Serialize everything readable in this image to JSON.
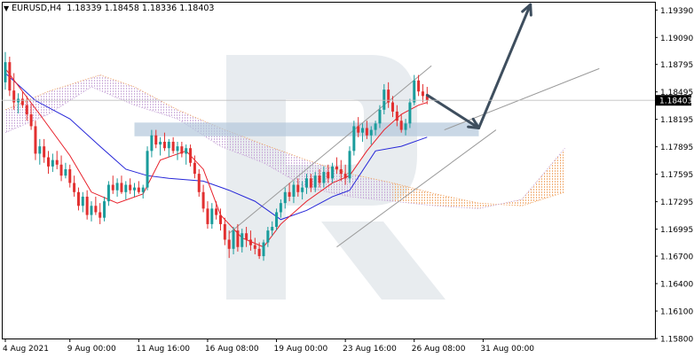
{
  "header": {
    "symbol": "EURUSD,H4",
    "ohlc": "1.18339 1.18458 1.18336 1.18403"
  },
  "colors": {
    "up_candle": "#1a9c9c",
    "down_candle": "#e23030",
    "tenkan": "#e8202a",
    "kijun": "#2626d8",
    "cloud_top": "#c8a8d8",
    "cloud_bottom": "#f0a86a",
    "channel": "#9a9a9a",
    "arrow": "#3e4e5e",
    "level_band": "#b4c8dc",
    "watermark": "#e6eaee"
  },
  "chart_data": {
    "type": "candlestick",
    "title": "EURUSD,H4",
    "ylim": [
      1.158,
      1.1948
    ],
    "y_ticks": [
      "1.19390",
      "1.19090",
      "1.18795",
      "1.18495",
      "1.18195",
      "1.17895",
      "1.17595",
      "1.17295",
      "1.16995",
      "1.16700",
      "1.16400",
      "1.16100",
      "1.15800"
    ],
    "y_tick_values": [
      1.1939,
      1.1909,
      1.18795,
      1.18495,
      1.18195,
      1.17895,
      1.17595,
      1.17295,
      1.16995,
      1.167,
      1.164,
      1.161,
      1.158
    ],
    "x_ticks": [
      "4 Aug 2021",
      "9 Aug 00:00",
      "11 Aug 16:00",
      "16 Aug 08:00",
      "19 Aug 00:00",
      "23 Aug 16:00",
      "26 Aug 08:00",
      "31 Aug 00:00"
    ],
    "x_tick_index": [
      0,
      15,
      31,
      47,
      63,
      79,
      95,
      111
    ],
    "current_price": "1.18403",
    "current_price_value": 1.18403,
    "candles": [
      [
        1.186,
        1.1893,
        1.1852,
        1.1882
      ],
      [
        1.1882,
        1.1888,
        1.1845,
        1.1851
      ],
      [
        1.1851,
        1.187,
        1.183,
        1.1838
      ],
      [
        1.1838,
        1.1848,
        1.1826,
        1.1842
      ],
      [
        1.1842,
        1.185,
        1.1832,
        1.1835
      ],
      [
        1.1835,
        1.1845,
        1.1818,
        1.1825
      ],
      [
        1.1825,
        1.1836,
        1.1808,
        1.1812
      ],
      [
        1.1812,
        1.1818,
        1.1775,
        1.1782
      ],
      [
        1.1782,
        1.1798,
        1.177,
        1.179
      ],
      [
        1.179,
        1.1798,
        1.1772,
        1.1778
      ],
      [
        1.1778,
        1.1785,
        1.176,
        1.1768
      ],
      [
        1.1768,
        1.1782,
        1.1762,
        1.1775
      ],
      [
        1.1775,
        1.1785,
        1.1765,
        1.177
      ],
      [
        1.177,
        1.178,
        1.1752,
        1.1758
      ],
      [
        1.1758,
        1.1772,
        1.1755,
        1.1765
      ],
      [
        1.1765,
        1.177,
        1.1745,
        1.175
      ],
      [
        1.175,
        1.1758,
        1.1735,
        1.174
      ],
      [
        1.174,
        1.1745,
        1.172,
        1.1725
      ],
      [
        1.1725,
        1.174,
        1.1718,
        1.1735
      ],
      [
        1.1735,
        1.1742,
        1.171,
        1.1715
      ],
      [
        1.1715,
        1.173,
        1.1708,
        1.1725
      ],
      [
        1.1725,
        1.1735,
        1.1715,
        1.1718
      ],
      [
        1.1718,
        1.1728,
        1.1705,
        1.1712
      ],
      [
        1.1712,
        1.1735,
        1.1708,
        1.173
      ],
      [
        1.173,
        1.1752,
        1.1725,
        1.1748
      ],
      [
        1.1748,
        1.1758,
        1.1738,
        1.1742
      ],
      [
        1.1742,
        1.1755,
        1.1735,
        1.175
      ],
      [
        1.175,
        1.1758,
        1.1738,
        1.174
      ],
      [
        1.174,
        1.1752,
        1.1732,
        1.1748
      ],
      [
        1.1748,
        1.1755,
        1.1738,
        1.1742
      ],
      [
        1.1742,
        1.175,
        1.1735,
        1.1745
      ],
      [
        1.1745,
        1.1752,
        1.1738,
        1.174
      ],
      [
        1.174,
        1.1748,
        1.1733,
        1.1745
      ],
      [
        1.1745,
        1.179,
        1.1742,
        1.1785
      ],
      [
        1.1785,
        1.1808,
        1.1778,
        1.1802
      ],
      [
        1.1802,
        1.1808,
        1.1788,
        1.1792
      ],
      [
        1.1792,
        1.18,
        1.178,
        1.1795
      ],
      [
        1.1795,
        1.1805,
        1.1785,
        1.1788
      ],
      [
        1.1788,
        1.1798,
        1.1778,
        1.1795
      ],
      [
        1.1795,
        1.18,
        1.1782,
        1.1785
      ],
      [
        1.1785,
        1.1795,
        1.1775,
        1.179
      ],
      [
        1.179,
        1.1795,
        1.1778,
        1.1782
      ],
      [
        1.1782,
        1.1792,
        1.177,
        1.1788
      ],
      [
        1.1788,
        1.1792,
        1.1768,
        1.1772
      ],
      [
        1.1772,
        1.178,
        1.1755,
        1.176
      ],
      [
        1.176,
        1.1765,
        1.1735,
        1.174
      ],
      [
        1.174,
        1.1748,
        1.1718,
        1.1722
      ],
      [
        1.1722,
        1.173,
        1.17,
        1.1705
      ],
      [
        1.1705,
        1.1728,
        1.17,
        1.1722
      ],
      [
        1.1722,
        1.173,
        1.171,
        1.1715
      ],
      [
        1.1715,
        1.1722,
        1.1698,
        1.1705
      ],
      [
        1.1705,
        1.1712,
        1.1682,
        1.1688
      ],
      [
        1.1688,
        1.1698,
        1.1668,
        1.1678
      ],
      [
        1.1678,
        1.1702,
        1.1672,
        1.1698
      ],
      [
        1.1698,
        1.1705,
        1.1675,
        1.168
      ],
      [
        1.168,
        1.17,
        1.1674,
        1.1695
      ],
      [
        1.1695,
        1.1702,
        1.168,
        1.1688
      ],
      [
        1.1688,
        1.1698,
        1.1676,
        1.1682
      ],
      [
        1.1682,
        1.169,
        1.1672,
        1.1678
      ],
      [
        1.1678,
        1.1685,
        1.1667,
        1.167
      ],
      [
        1.167,
        1.1688,
        1.1665,
        1.1685
      ],
      [
        1.1685,
        1.1702,
        1.168,
        1.1698
      ],
      [
        1.1698,
        1.1708,
        1.1692,
        1.1702
      ],
      [
        1.1702,
        1.1722,
        1.1698,
        1.1718
      ],
      [
        1.1718,
        1.1732,
        1.1712,
        1.1728
      ],
      [
        1.1728,
        1.1745,
        1.1722,
        1.174
      ],
      [
        1.174,
        1.175,
        1.173,
        1.1735
      ],
      [
        1.1735,
        1.1752,
        1.1728,
        1.1748
      ],
      [
        1.1748,
        1.1755,
        1.1735,
        1.174
      ],
      [
        1.174,
        1.1752,
        1.1732,
        1.1745
      ],
      [
        1.1745,
        1.176,
        1.1738,
        1.1755
      ],
      [
        1.1755,
        1.176,
        1.174,
        1.1745
      ],
      [
        1.1745,
        1.1762,
        1.174,
        1.1758
      ],
      [
        1.1758,
        1.1765,
        1.1745,
        1.175
      ],
      [
        1.175,
        1.1768,
        1.1745,
        1.1762
      ],
      [
        1.1762,
        1.177,
        1.175,
        1.1755
      ],
      [
        1.1755,
        1.1772,
        1.175,
        1.1768
      ],
      [
        1.1768,
        1.1778,
        1.176,
        1.1765
      ],
      [
        1.1765,
        1.1775,
        1.1752,
        1.176
      ],
      [
        1.176,
        1.177,
        1.1748,
        1.1755
      ],
      [
        1.1755,
        1.179,
        1.175,
        1.1785
      ],
      [
        1.1785,
        1.1818,
        1.178,
        1.1812
      ],
      [
        1.1812,
        1.1822,
        1.18,
        1.1805
      ],
      [
        1.1805,
        1.1815,
        1.1795,
        1.181
      ],
      [
        1.181,
        1.1818,
        1.1798,
        1.1802
      ],
      [
        1.1802,
        1.1812,
        1.1792,
        1.1808
      ],
      [
        1.1808,
        1.1818,
        1.1802,
        1.1815
      ],
      [
        1.1815,
        1.1835,
        1.181,
        1.183
      ],
      [
        1.183,
        1.1858,
        1.1825,
        1.1852
      ],
      [
        1.1852,
        1.186,
        1.1832,
        1.1838
      ],
      [
        1.1838,
        1.1845,
        1.1822,
        1.1828
      ],
      [
        1.1828,
        1.1835,
        1.1812,
        1.1818
      ],
      [
        1.1818,
        1.1825,
        1.1805,
        1.1808
      ],
      [
        1.1808,
        1.182,
        1.1802,
        1.1815
      ],
      [
        1.1815,
        1.1842,
        1.181,
        1.1838
      ],
      [
        1.1838,
        1.1868,
        1.1835,
        1.1862
      ],
      [
        1.1862,
        1.1868,
        1.1845,
        1.185
      ],
      [
        1.185,
        1.1858,
        1.1838,
        1.1845
      ],
      [
        1.1845,
        1.1855,
        1.1836,
        1.184
      ]
    ],
    "indicators": {
      "tenkan": [
        [
          0,
          1.1875
        ],
        [
          8,
          1.1825
        ],
        [
          15,
          1.178
        ],
        [
          20,
          1.174
        ],
        [
          26,
          1.1728
        ],
        [
          32,
          1.1738
        ],
        [
          36,
          1.1775
        ],
        [
          42,
          1.1785
        ],
        [
          46,
          1.1765
        ],
        [
          50,
          1.1715
        ],
        [
          55,
          1.169
        ],
        [
          60,
          1.168
        ],
        [
          64,
          1.1705
        ],
        [
          70,
          1.173
        ],
        [
          76,
          1.175
        ],
        [
          80,
          1.1758
        ],
        [
          84,
          1.1785
        ],
        [
          88,
          1.1808
        ],
        [
          92,
          1.1825
        ],
        [
          96,
          1.1835
        ],
        [
          98,
          1.1838
        ]
      ],
      "kijun": [
        [
          0,
          1.187
        ],
        [
          7,
          1.184
        ],
        [
          15,
          1.182
        ],
        [
          22,
          1.179
        ],
        [
          28,
          1.1765
        ],
        [
          33,
          1.1758
        ],
        [
          38,
          1.1755
        ],
        [
          46,
          1.1752
        ],
        [
          52,
          1.1742
        ],
        [
          58,
          1.173
        ],
        [
          64,
          1.171
        ],
        [
          70,
          1.172
        ],
        [
          76,
          1.1735
        ],
        [
          80,
          1.1742
        ],
        [
          86,
          1.1785
        ],
        [
          92,
          1.179
        ],
        [
          98,
          1.18
        ]
      ]
    },
    "cloud": {
      "span_a": [
        [
          0,
          1.183
        ],
        [
          10,
          1.185
        ],
        [
          22,
          1.1868
        ],
        [
          30,
          1.1855
        ],
        [
          40,
          1.183
        ],
        [
          50,
          1.181
        ],
        [
          60,
          1.1792
        ],
        [
          70,
          1.1775
        ],
        [
          80,
          1.176
        ],
        [
          90,
          1.175
        ],
        [
          100,
          1.1738
        ],
        [
          110,
          1.1728
        ],
        [
          120,
          1.1725
        ],
        [
          130,
          1.174
        ]
      ],
      "span_b": [
        [
          0,
          1.1805
        ],
        [
          10,
          1.1825
        ],
        [
          20,
          1.1855
        ],
        [
          30,
          1.1835
        ],
        [
          40,
          1.182
        ],
        [
          50,
          1.179
        ],
        [
          60,
          1.1772
        ],
        [
          70,
          1.1745
        ],
        [
          80,
          1.1735
        ],
        [
          90,
          1.173
        ],
        [
          100,
          1.1725
        ],
        [
          110,
          1.1722
        ],
        [
          120,
          1.1732
        ],
        [
          130,
          1.1788
        ]
      ]
    },
    "channel": {
      "upper": [
        [
          52,
          1.1695
        ],
        [
          99,
          1.1878
        ]
      ],
      "lower": [
        [
          77,
          1.168
        ],
        [
          114,
          1.1808
        ]
      ],
      "right_line": [
        [
          102,
          1.1808
        ],
        [
          138,
          1.1875
        ]
      ]
    },
    "level_band": [
      1.1801,
      1.1816
    ],
    "forecast_path": [
      [
        98,
        1.1846
      ],
      [
        110,
        1.181
      ],
      [
        122,
        1.1945
      ]
    ]
  }
}
